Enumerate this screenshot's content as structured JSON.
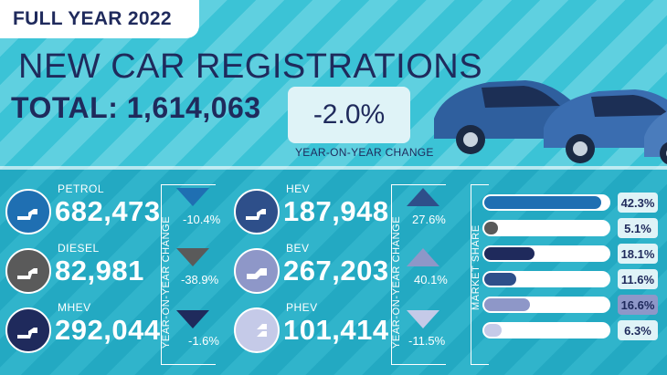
{
  "badge": "FULL YEAR 2022",
  "headline": "NEW CAR REGISTRATIONS",
  "total_label": "TOTAL: 1,614,063",
  "change": {
    "value": "-2.0%",
    "label": "YEAR-ON-YEAR CHANGE"
  },
  "yoy_axis_label": "YEAR-ON-YEAR CHANGE",
  "market_share_label": "MARKET SHARE",
  "fuels": [
    {
      "name": "PETROL",
      "value": "682,473",
      "change": "-10.4%",
      "direction": "down",
      "share": "42.3%",
      "share_fraction": 0.423,
      "color": "#1f6fb2",
      "icon": "fuel-pump-icon"
    },
    {
      "name": "DIESEL",
      "value": "82,981",
      "change": "-38.9%",
      "direction": "down",
      "share": "5.1%",
      "share_fraction": 0.051,
      "color": "#5a5a5a",
      "icon": "fuel-pump-icon"
    },
    {
      "name": "MHEV",
      "value": "292,044",
      "change": "-1.6%",
      "direction": "down",
      "share": "18.1%",
      "share_fraction": 0.181,
      "color": "#1f2a5c",
      "icon": "fuel-pump-icon"
    },
    {
      "name": "HEV",
      "value": "187,948",
      "change": "27.6%",
      "direction": "up",
      "share": "11.6%",
      "share_fraction": 0.116,
      "color": "#2e4f8a",
      "icon": "fuel-pump-icon"
    },
    {
      "name": "BEV",
      "value": "267,203",
      "change": "40.1%",
      "direction": "up",
      "share": "16.6%",
      "share_fraction": 0.166,
      "color": "#8e97c8",
      "icon": "charging-plug-icon"
    },
    {
      "name": "PHEV",
      "value": "101,414",
      "change": "-11.5%",
      "direction": "down",
      "share": "6.3%",
      "share_fraction": 0.063,
      "color": "#c5cae8",
      "icon": "plug-and-pump-icon"
    }
  ]
}
